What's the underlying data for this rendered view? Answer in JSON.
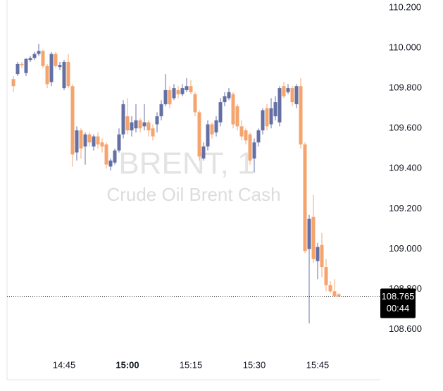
{
  "chart_data": {
    "type": "candlestick",
    "watermark_title": "BRENT, 1",
    "watermark_subtitle": "Crude Oil Brent Cash",
    "x": [
      "14:33",
      "14:34",
      "14:35",
      "14:36",
      "14:37",
      "14:38",
      "14:39",
      "14:40",
      "14:41",
      "14:42",
      "14:43",
      "14:44",
      "14:45",
      "14:46",
      "14:47",
      "14:48",
      "14:49",
      "14:50",
      "14:51",
      "14:52",
      "14:53",
      "14:54",
      "14:55",
      "14:56",
      "14:57",
      "14:58",
      "14:59",
      "15:00",
      "15:01",
      "15:02",
      "15:03",
      "15:04",
      "15:05",
      "15:06",
      "15:07",
      "15:08",
      "15:09",
      "15:10",
      "15:11",
      "15:12",
      "15:13",
      "15:14",
      "15:15",
      "15:16",
      "15:17",
      "15:18",
      "15:19",
      "15:20",
      "15:21",
      "15:22",
      "15:23",
      "15:24",
      "15:25",
      "15:26",
      "15:27",
      "15:28",
      "15:29",
      "15:30",
      "15:31",
      "15:32",
      "15:33",
      "15:34",
      "15:35",
      "15:36",
      "15:37",
      "15:38",
      "15:39",
      "15:40",
      "15:41",
      "15:42",
      "15:43",
      "15:44",
      "15:45",
      "15:46",
      "15:47",
      "15:48",
      "15:49",
      "15:50"
    ],
    "open": [
      109.845,
      109.87,
      109.92,
      109.875,
      109.94,
      109.95,
      109.97,
      109.985,
      109.91,
      109.83,
      109.97,
      109.905,
      109.8,
      109.93,
      109.81,
      109.48,
      109.59,
      109.51,
      109.57,
      109.51,
      109.56,
      109.53,
      109.52,
      109.41,
      109.43,
      109.49,
      109.57,
      109.66,
      109.59,
      109.6,
      109.64,
      109.61,
      109.63,
      109.6,
      109.62,
      109.66,
      109.72,
      109.79,
      109.75,
      109.79,
      109.77,
      109.79,
      109.81,
      109.77,
      109.68,
      109.45,
      109.51,
      109.62,
      109.58,
      109.63,
      109.73,
      109.75,
      109.77,
      109.71,
      109.61,
      109.59,
      109.57,
      109.45,
      109.53,
      109.59,
      109.7,
      109.62,
      109.66,
      109.63,
      109.81,
      109.78,
      109.8,
      109.72,
      109.81,
      109.52,
      109.0,
      109.16,
      108.94,
      109.02,
      108.91,
      108.82,
      108.79,
      108.775
    ],
    "high": [
      109.86,
      109.93,
      109.93,
      109.95,
      109.96,
      109.98,
      110.02,
      109.99,
      109.92,
      109.98,
      109.98,
      109.93,
      109.94,
      109.97,
      109.82,
      109.61,
      109.6,
      109.58,
      109.58,
      109.57,
      109.58,
      109.55,
      109.53,
      109.45,
      109.5,
      109.6,
      109.74,
      109.75,
      109.66,
      109.72,
      109.65,
      109.72,
      109.64,
      109.62,
      109.68,
      109.74,
      109.87,
      109.81,
      109.82,
      109.81,
      109.82,
      109.85,
      109.84,
      109.78,
      109.69,
      109.53,
      109.64,
      109.63,
      109.66,
      109.75,
      109.78,
      109.8,
      109.78,
      109.72,
      109.64,
      109.6,
      109.58,
      109.55,
      109.6,
      109.7,
      109.72,
      109.75,
      109.76,
      109.81,
      109.83,
      109.82,
      109.81,
      109.82,
      109.85,
      109.53,
      109.17,
      109.27,
      109.03,
      109.08,
      108.95,
      108.84,
      108.85,
      108.78
    ],
    "low": [
      109.78,
      109.86,
      109.9,
      109.86,
      109.93,
      109.94,
      109.96,
      109.9,
      109.8,
      109.81,
      109.9,
      109.89,
      109.79,
      109.8,
      109.41,
      109.44,
      109.45,
      109.42,
      109.51,
      109.49,
      109.5,
      109.48,
      109.4,
      109.39,
      109.42,
      109.48,
      109.55,
      109.57,
      109.56,
      109.58,
      109.58,
      109.59,
      109.56,
      109.54,
      109.58,
      109.64,
      109.71,
      109.7,
      109.74,
      109.75,
      109.76,
      109.78,
      109.77,
      109.66,
      109.44,
      109.44,
      109.49,
      109.55,
      109.56,
      109.61,
      109.71,
      109.74,
      109.6,
      109.59,
      109.54,
      109.52,
      109.42,
      109.38,
      109.51,
      109.57,
      109.59,
      109.6,
      109.64,
      109.61,
      109.75,
      109.77,
      109.71,
      109.7,
      109.5,
      108.98,
      108.63,
      108.93,
      108.85,
      108.86,
      108.79,
      108.78,
      108.76,
      108.76
    ],
    "close": [
      109.81,
      109.92,
      109.915,
      109.945,
      109.95,
      109.97,
      109.985,
      109.91,
      109.82,
      109.97,
      109.91,
      109.915,
      109.93,
      109.81,
      109.47,
      109.59,
      109.5,
      109.57,
      109.53,
      109.56,
      109.52,
      109.51,
      109.42,
      109.44,
      109.49,
      109.57,
      109.72,
      109.59,
      109.63,
      109.64,
      109.6,
      109.63,
      109.59,
      109.56,
      109.66,
      109.72,
      109.79,
      109.72,
      109.8,
      109.77,
      109.8,
      109.81,
      109.78,
      109.68,
      109.46,
      109.51,
      109.62,
      109.57,
      109.64,
      109.73,
      109.76,
      109.78,
      109.62,
      109.61,
      109.56,
      109.54,
      109.44,
      109.53,
      109.59,
      109.69,
      109.61,
      109.7,
      109.73,
      109.8,
      109.76,
      109.8,
      109.73,
      109.81,
      109.52,
      108.99,
      109.15,
      108.95,
      109.01,
      108.91,
      108.82,
      108.79,
      108.766,
      108.765
    ],
    "up_color": "#6470a4",
    "down_color": "#f5a46e",
    "ylim": [
      108.35,
      110.24
    ],
    "yticks": [
      {
        "value": 108.6,
        "label": "108.600"
      },
      {
        "value": 108.8,
        "label": "108.800"
      },
      {
        "value": 109.0,
        "label": "109.000"
      },
      {
        "value": 109.2,
        "label": "109.200"
      },
      {
        "value": 109.4,
        "label": "109.400"
      },
      {
        "value": 109.6,
        "label": "109.600"
      },
      {
        "value": 109.8,
        "label": "109.800"
      },
      {
        "value": 110.0,
        "label": "110.000"
      },
      {
        "value": 110.2,
        "label": "110.200"
      }
    ],
    "xticks": [
      "14:45",
      "15:00",
      "15:15",
      "15:30",
      "15:45"
    ],
    "last_price": 108.765,
    "countdown": "00:44"
  }
}
